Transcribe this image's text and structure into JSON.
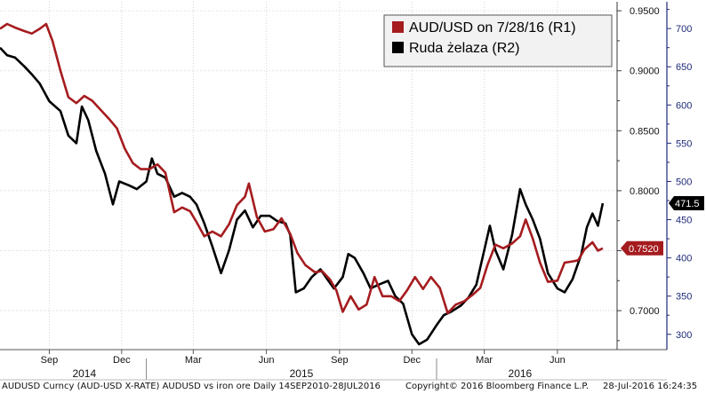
{
  "chart_data": {
    "type": "line",
    "x_ticks": [
      {
        "label": "Sep",
        "date": "2014-09-01"
      },
      {
        "label": "Dec",
        "date": "2014-12-01"
      },
      {
        "label": "Mar",
        "date": "2015-03-01"
      },
      {
        "label": "Jun",
        "date": "2015-06-01"
      },
      {
        "label": "Sep",
        "date": "2015-09-01"
      },
      {
        "label": "Dec",
        "date": "2015-12-01"
      },
      {
        "label": "Mar",
        "date": "2016-03-01"
      },
      {
        "label": "Jun",
        "date": "2016-06-01"
      }
    ],
    "year_labels": [
      {
        "label": "2014",
        "date": "2014-10-15"
      },
      {
        "label": "2015",
        "date": "2015-07-15"
      },
      {
        "label": "2016",
        "date": "2016-04-15"
      }
    ],
    "year_dividers": [
      "2015-01-01",
      "2016-01-01"
    ],
    "x_range": [
      "2014-07-01",
      "2016-08-15"
    ],
    "axis_r1": {
      "ylim": [
        0.6675,
        0.9575
      ],
      "ticks": [
        "0.7000",
        "0.7500",
        "0.8000",
        "0.8500",
        "0.9000",
        "0.9500"
      ],
      "tick_values": [
        0.7,
        0.75,
        0.8,
        0.85,
        0.9,
        0.95
      ]
    },
    "axis_r2": {
      "ylim": [
        280,
        735
      ],
      "ticks": [
        "300",
        "350",
        "400",
        "450",
        "500",
        "550",
        "600",
        "650",
        "700"
      ],
      "tick_values": [
        300,
        350,
        400,
        450,
        500,
        550,
        600,
        650,
        700
      ]
    },
    "legend": {
      "position": "top-right"
    },
    "grid": true,
    "series": [
      {
        "name": "AUD/USD on 7/28/16 (R1)",
        "axis": "R1",
        "color": "#a51c1f",
        "last_label": "0.7520",
        "points": [
          [
            "2014-07-01",
            0.935
          ],
          [
            "2014-07-10",
            0.939
          ],
          [
            "2014-07-20",
            0.936
          ],
          [
            "2014-08-01",
            0.933
          ],
          [
            "2014-08-10",
            0.931
          ],
          [
            "2014-08-20",
            0.935
          ],
          [
            "2014-08-28",
            0.939
          ],
          [
            "2014-09-05",
            0.925
          ],
          [
            "2014-09-15",
            0.9
          ],
          [
            "2014-09-25",
            0.878
          ],
          [
            "2014-10-05",
            0.873
          ],
          [
            "2014-10-15",
            0.879
          ],
          [
            "2014-10-25",
            0.875
          ],
          [
            "2014-11-05",
            0.867
          ],
          [
            "2014-11-15",
            0.86
          ],
          [
            "2014-11-25",
            0.852
          ],
          [
            "2014-12-05",
            0.835
          ],
          [
            "2014-12-15",
            0.823
          ],
          [
            "2014-12-25",
            0.818
          ],
          [
            "2015-01-05",
            0.818
          ],
          [
            "2015-01-15",
            0.822
          ],
          [
            "2015-01-25",
            0.815
          ],
          [
            "2015-02-05",
            0.782
          ],
          [
            "2015-02-15",
            0.786
          ],
          [
            "2015-02-25",
            0.783
          ],
          [
            "2015-03-05",
            0.774
          ],
          [
            "2015-03-15",
            0.762
          ],
          [
            "2015-03-25",
            0.766
          ],
          [
            "2015-04-05",
            0.762
          ],
          [
            "2015-04-15",
            0.772
          ],
          [
            "2015-04-25",
            0.788
          ],
          [
            "2015-05-05",
            0.795
          ],
          [
            "2015-05-10",
            0.806
          ],
          [
            "2015-05-20",
            0.778
          ],
          [
            "2015-05-30",
            0.766
          ],
          [
            "2015-06-10",
            0.768
          ],
          [
            "2015-06-20",
            0.777
          ],
          [
            "2015-07-01",
            0.764
          ],
          [
            "2015-07-10",
            0.748
          ],
          [
            "2015-07-20",
            0.738
          ],
          [
            "2015-08-01",
            0.732
          ],
          [
            "2015-08-10",
            0.733
          ],
          [
            "2015-08-20",
            0.726
          ],
          [
            "2015-08-28",
            0.717
          ],
          [
            "2015-09-05",
            0.699
          ],
          [
            "2015-09-15",
            0.712
          ],
          [
            "2015-09-25",
            0.701
          ],
          [
            "2015-10-05",
            0.705
          ],
          [
            "2015-10-15",
            0.728
          ],
          [
            "2015-10-25",
            0.712
          ],
          [
            "2015-11-05",
            0.712
          ],
          [
            "2015-11-15",
            0.708
          ],
          [
            "2015-11-25",
            0.717
          ],
          [
            "2015-12-05",
            0.728
          ],
          [
            "2015-12-15",
            0.718
          ],
          [
            "2015-12-25",
            0.728
          ],
          [
            "2016-01-05",
            0.719
          ],
          [
            "2016-01-15",
            0.698
          ],
          [
            "2016-01-25",
            0.705
          ],
          [
            "2016-02-05",
            0.708
          ],
          [
            "2016-02-15",
            0.713
          ],
          [
            "2016-02-25",
            0.719
          ],
          [
            "2016-03-05",
            0.738
          ],
          [
            "2016-03-15",
            0.755
          ],
          [
            "2016-03-25",
            0.752
          ],
          [
            "2016-04-05",
            0.756
          ],
          [
            "2016-04-15",
            0.762
          ],
          [
            "2016-04-22",
            0.776
          ],
          [
            "2016-05-01",
            0.76
          ],
          [
            "2016-05-10",
            0.74
          ],
          [
            "2016-05-20",
            0.724
          ],
          [
            "2016-06-01",
            0.725
          ],
          [
            "2016-06-10",
            0.74
          ],
          [
            "2016-06-20",
            0.741
          ],
          [
            "2016-06-27",
            0.742
          ],
          [
            "2016-07-05",
            0.751
          ],
          [
            "2016-07-15",
            0.757
          ],
          [
            "2016-07-22",
            0.75
          ],
          [
            "2016-07-28",
            0.752
          ]
        ]
      },
      {
        "name": "Ruda żelaza (R2)",
        "axis": "R2",
        "color": "#000000",
        "last_label": "471.5",
        "points": [
          [
            "2014-07-01",
            675
          ],
          [
            "2014-07-10",
            665
          ],
          [
            "2014-07-20",
            662
          ],
          [
            "2014-08-01",
            650
          ],
          [
            "2014-08-10",
            640
          ],
          [
            "2014-08-20",
            628
          ],
          [
            "2014-09-01",
            605
          ],
          [
            "2014-09-15",
            592
          ],
          [
            "2014-09-25",
            560
          ],
          [
            "2014-10-05",
            550
          ],
          [
            "2014-10-12",
            598
          ],
          [
            "2014-10-20",
            580
          ],
          [
            "2014-10-30",
            540
          ],
          [
            "2014-11-10",
            510
          ],
          [
            "2014-11-20",
            470
          ],
          [
            "2014-11-28",
            500
          ],
          [
            "2014-12-10",
            495
          ],
          [
            "2014-12-20",
            490
          ],
          [
            "2015-01-01",
            500
          ],
          [
            "2015-01-08",
            530
          ],
          [
            "2015-01-15",
            510
          ],
          [
            "2015-01-25",
            505
          ],
          [
            "2015-02-05",
            480
          ],
          [
            "2015-02-15",
            485
          ],
          [
            "2015-02-25",
            480
          ],
          [
            "2015-03-05",
            470
          ],
          [
            "2015-03-15",
            445
          ],
          [
            "2015-03-25",
            415
          ],
          [
            "2015-04-05",
            380
          ],
          [
            "2015-04-15",
            410
          ],
          [
            "2015-04-25",
            450
          ],
          [
            "2015-05-05",
            462
          ],
          [
            "2015-05-15",
            440
          ],
          [
            "2015-05-25",
            455
          ],
          [
            "2015-06-05",
            455
          ],
          [
            "2015-06-15",
            448
          ],
          [
            "2015-06-25",
            445
          ],
          [
            "2015-07-01",
            430
          ],
          [
            "2015-07-08",
            355
          ],
          [
            "2015-07-18",
            360
          ],
          [
            "2015-07-28",
            375
          ],
          [
            "2015-08-08",
            385
          ],
          [
            "2015-08-18",
            370
          ],
          [
            "2015-08-25",
            360
          ],
          [
            "2015-09-05",
            375
          ],
          [
            "2015-09-12",
            405
          ],
          [
            "2015-09-20",
            400
          ],
          [
            "2015-10-01",
            380
          ],
          [
            "2015-10-10",
            360
          ],
          [
            "2015-10-20",
            365
          ],
          [
            "2015-11-01",
            370
          ],
          [
            "2015-11-10",
            350
          ],
          [
            "2015-11-20",
            340
          ],
          [
            "2015-12-01",
            300
          ],
          [
            "2015-12-10",
            287
          ],
          [
            "2015-12-20",
            293
          ],
          [
            "2016-01-01",
            312
          ],
          [
            "2016-01-10",
            325
          ],
          [
            "2016-01-20",
            330
          ],
          [
            "2016-02-01",
            338
          ],
          [
            "2016-02-10",
            348
          ],
          [
            "2016-02-20",
            365
          ],
          [
            "2016-03-01",
            410
          ],
          [
            "2016-03-08",
            442
          ],
          [
            "2016-03-15",
            410
          ],
          [
            "2016-03-25",
            385
          ],
          [
            "2016-04-05",
            430
          ],
          [
            "2016-04-15",
            490
          ],
          [
            "2016-04-22",
            470
          ],
          [
            "2016-05-01",
            450
          ],
          [
            "2016-05-10",
            425
          ],
          [
            "2016-05-20",
            380
          ],
          [
            "2016-06-01",
            360
          ],
          [
            "2016-06-10",
            355
          ],
          [
            "2016-06-20",
            372
          ],
          [
            "2016-07-01",
            405
          ],
          [
            "2016-07-08",
            440
          ],
          [
            "2016-07-15",
            458
          ],
          [
            "2016-07-22",
            442
          ],
          [
            "2016-07-28",
            471.5
          ]
        ]
      }
    ]
  },
  "footer": {
    "left": "AUDUSD Curncy (AUD-USD X-RATE) AUDUSD vs iron ore  Daily 14SEP2010-28JUL2016",
    "center": "Copyright© 2016 Bloomberg Finance L.P.",
    "right": "28-Jul-2016 16:24:35"
  },
  "colors": {
    "r1_axis": "#3a3a3a",
    "r2_axis": "#1e2a78",
    "grid": "#d6d6d6"
  }
}
